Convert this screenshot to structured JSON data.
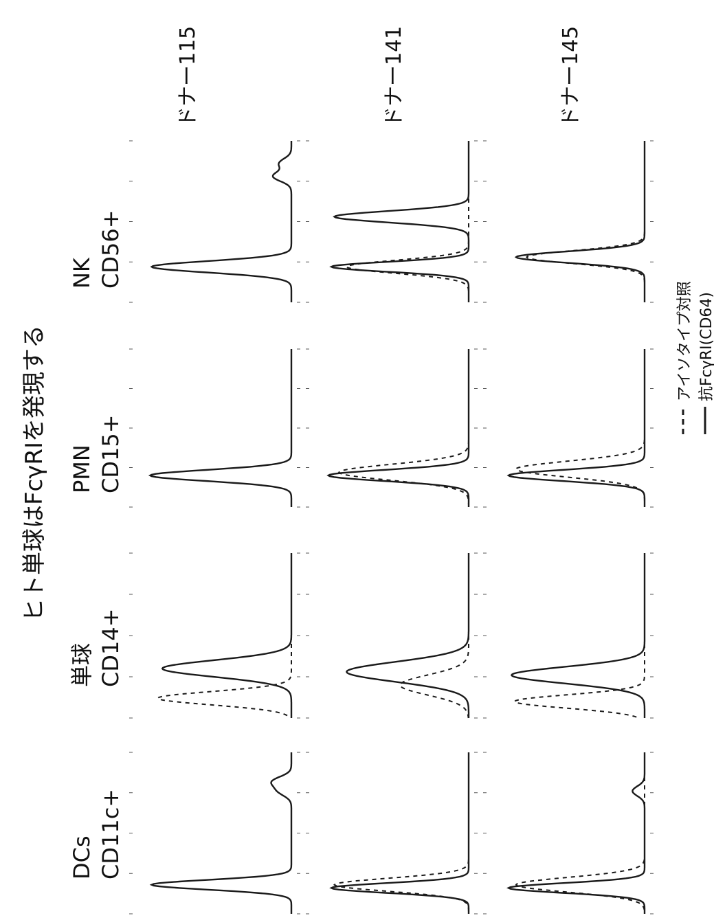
{
  "figure_title": "ヒト単球はFcγRIを発現する",
  "columns": [
    {
      "name": "DCs",
      "marker": "CD11c+"
    },
    {
      "name": "単球",
      "marker": "CD14+",
      "highlighted": true
    },
    {
      "name": "PMN",
      "marker": "CD15+"
    },
    {
      "name": "NK",
      "marker": "CD56+"
    }
  ],
  "rows": [
    {
      "donor": "ドナー115"
    },
    {
      "donor": "ドナー141"
    },
    {
      "donor": "ドナー145"
    }
  ],
  "legend": [
    {
      "label": "アイソタイプ対照",
      "line_style": "dashed"
    },
    {
      "label": "抗FcγRI(CD64)",
      "line_style": "solid"
    }
  ],
  "colors": {
    "ink": "#1a1a1a",
    "highlight_frame": "#555555"
  }
}
